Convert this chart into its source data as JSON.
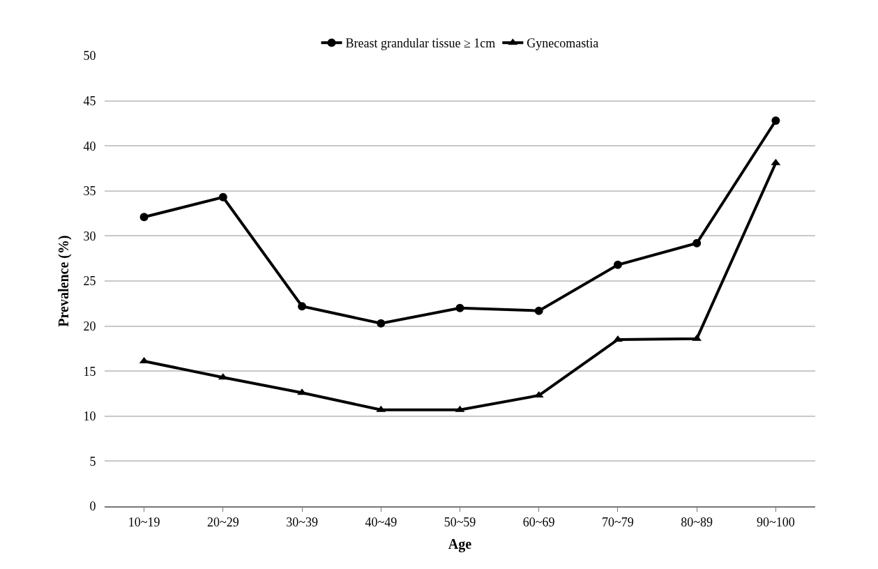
{
  "chart_data": {
    "type": "line",
    "xlabel": "Age",
    "ylabel": "Prevalence (%)",
    "categories": [
      "10~19",
      "20~29",
      "30~39",
      "40~49",
      "50~59",
      "60~69",
      "70~79",
      "80~89",
      "90~100"
    ],
    "series": [
      {
        "name": "Breast grandular tissue ≥ 1cm",
        "color": "#000000",
        "marker": "circle",
        "values": [
          32.1,
          34.3,
          22.2,
          20.3,
          22.0,
          21.7,
          26.8,
          29.2,
          42.8
        ]
      },
      {
        "name": "Gynecomastia",
        "color": "#000000",
        "marker": "triangle",
        "values": [
          16.1,
          14.3,
          12.6,
          10.7,
          10.7,
          12.3,
          18.5,
          18.6,
          38.1
        ]
      }
    ],
    "ylim": [
      0,
      50
    ],
    "yticks": [
      0,
      5,
      10,
      15,
      20,
      25,
      30,
      35,
      40,
      45,
      50
    ],
    "grid": "y",
    "legend": "top",
    "line_style": "solid"
  }
}
